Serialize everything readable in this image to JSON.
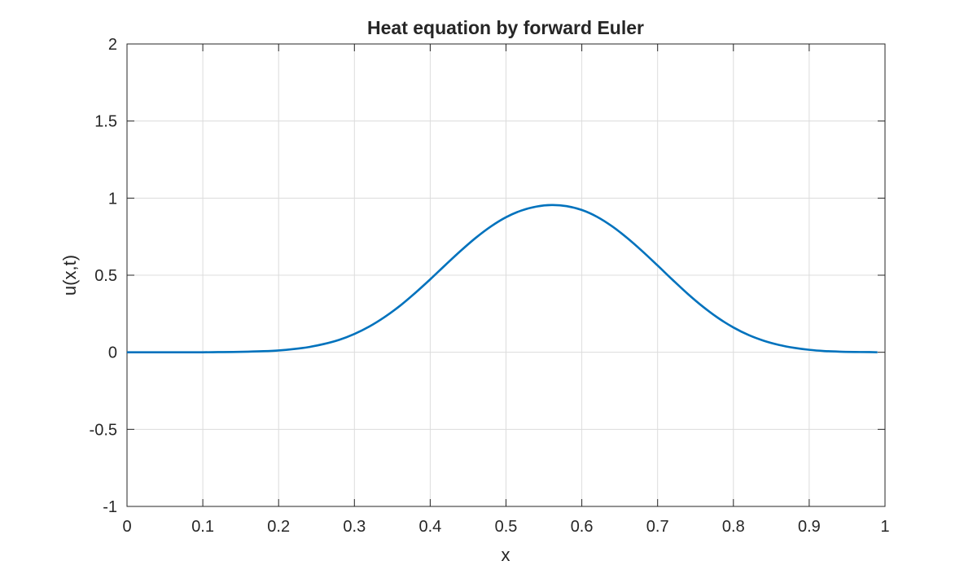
{
  "chart_data": {
    "type": "line",
    "title": "Heat equation by forward Euler",
    "xlabel": "x",
    "ylabel": "u(x,t)",
    "xlim": [
      0,
      1
    ],
    "ylim": [
      -1,
      2
    ],
    "grid": true,
    "xticks": [
      0,
      0.1,
      0.2,
      0.3,
      0.4,
      0.5,
      0.6,
      0.7,
      0.8,
      0.9,
      1
    ],
    "xtick_labels": [
      "0",
      "0.1",
      "0.2",
      "0.3",
      "0.4",
      "0.5",
      "0.6",
      "0.7",
      "0.8",
      "0.9",
      "1"
    ],
    "yticks": [
      -1,
      -0.5,
      0,
      0.5,
      1,
      1.5,
      2
    ],
    "ytick_labels": [
      "-1",
      "-0.5",
      "0",
      "0.5",
      "1",
      "1.5",
      "2"
    ],
    "colors": {
      "line": "#0072BD",
      "grid": "#dcdcdc",
      "axes": "#262626"
    },
    "series": [
      {
        "x": [
          0,
          0.02,
          0.04,
          0.06,
          0.08,
          0.1,
          0.12,
          0.14,
          0.16,
          0.18,
          0.2,
          0.22,
          0.24,
          0.26,
          0.28,
          0.3,
          0.32,
          0.34,
          0.36,
          0.38,
          0.4,
          0.42,
          0.44,
          0.46,
          0.48,
          0.5,
          0.52,
          0.54,
          0.56,
          0.58,
          0.6,
          0.62,
          0.64,
          0.66,
          0.68,
          0.7,
          0.72,
          0.74,
          0.76,
          0.78,
          0.8,
          0.82,
          0.84,
          0.86,
          0.88,
          0.9,
          0.92,
          0.94,
          0.96,
          0.98,
          0.99
        ],
        "y": [
          0,
          0,
          0,
          0,
          0,
          0,
          0.001,
          0.002,
          0.004,
          0.007,
          0.012,
          0.021,
          0.034,
          0.054,
          0.081,
          0.119,
          0.168,
          0.229,
          0.301,
          0.384,
          0.473,
          0.566,
          0.657,
          0.742,
          0.816,
          0.876,
          0.919,
          0.945,
          0.955,
          0.948,
          0.923,
          0.879,
          0.817,
          0.741,
          0.655,
          0.563,
          0.469,
          0.378,
          0.295,
          0.222,
          0.161,
          0.112,
          0.075,
          0.048,
          0.029,
          0.016,
          0.008,
          0.004,
          0.002,
          0.001,
          0
        ]
      }
    ]
  }
}
